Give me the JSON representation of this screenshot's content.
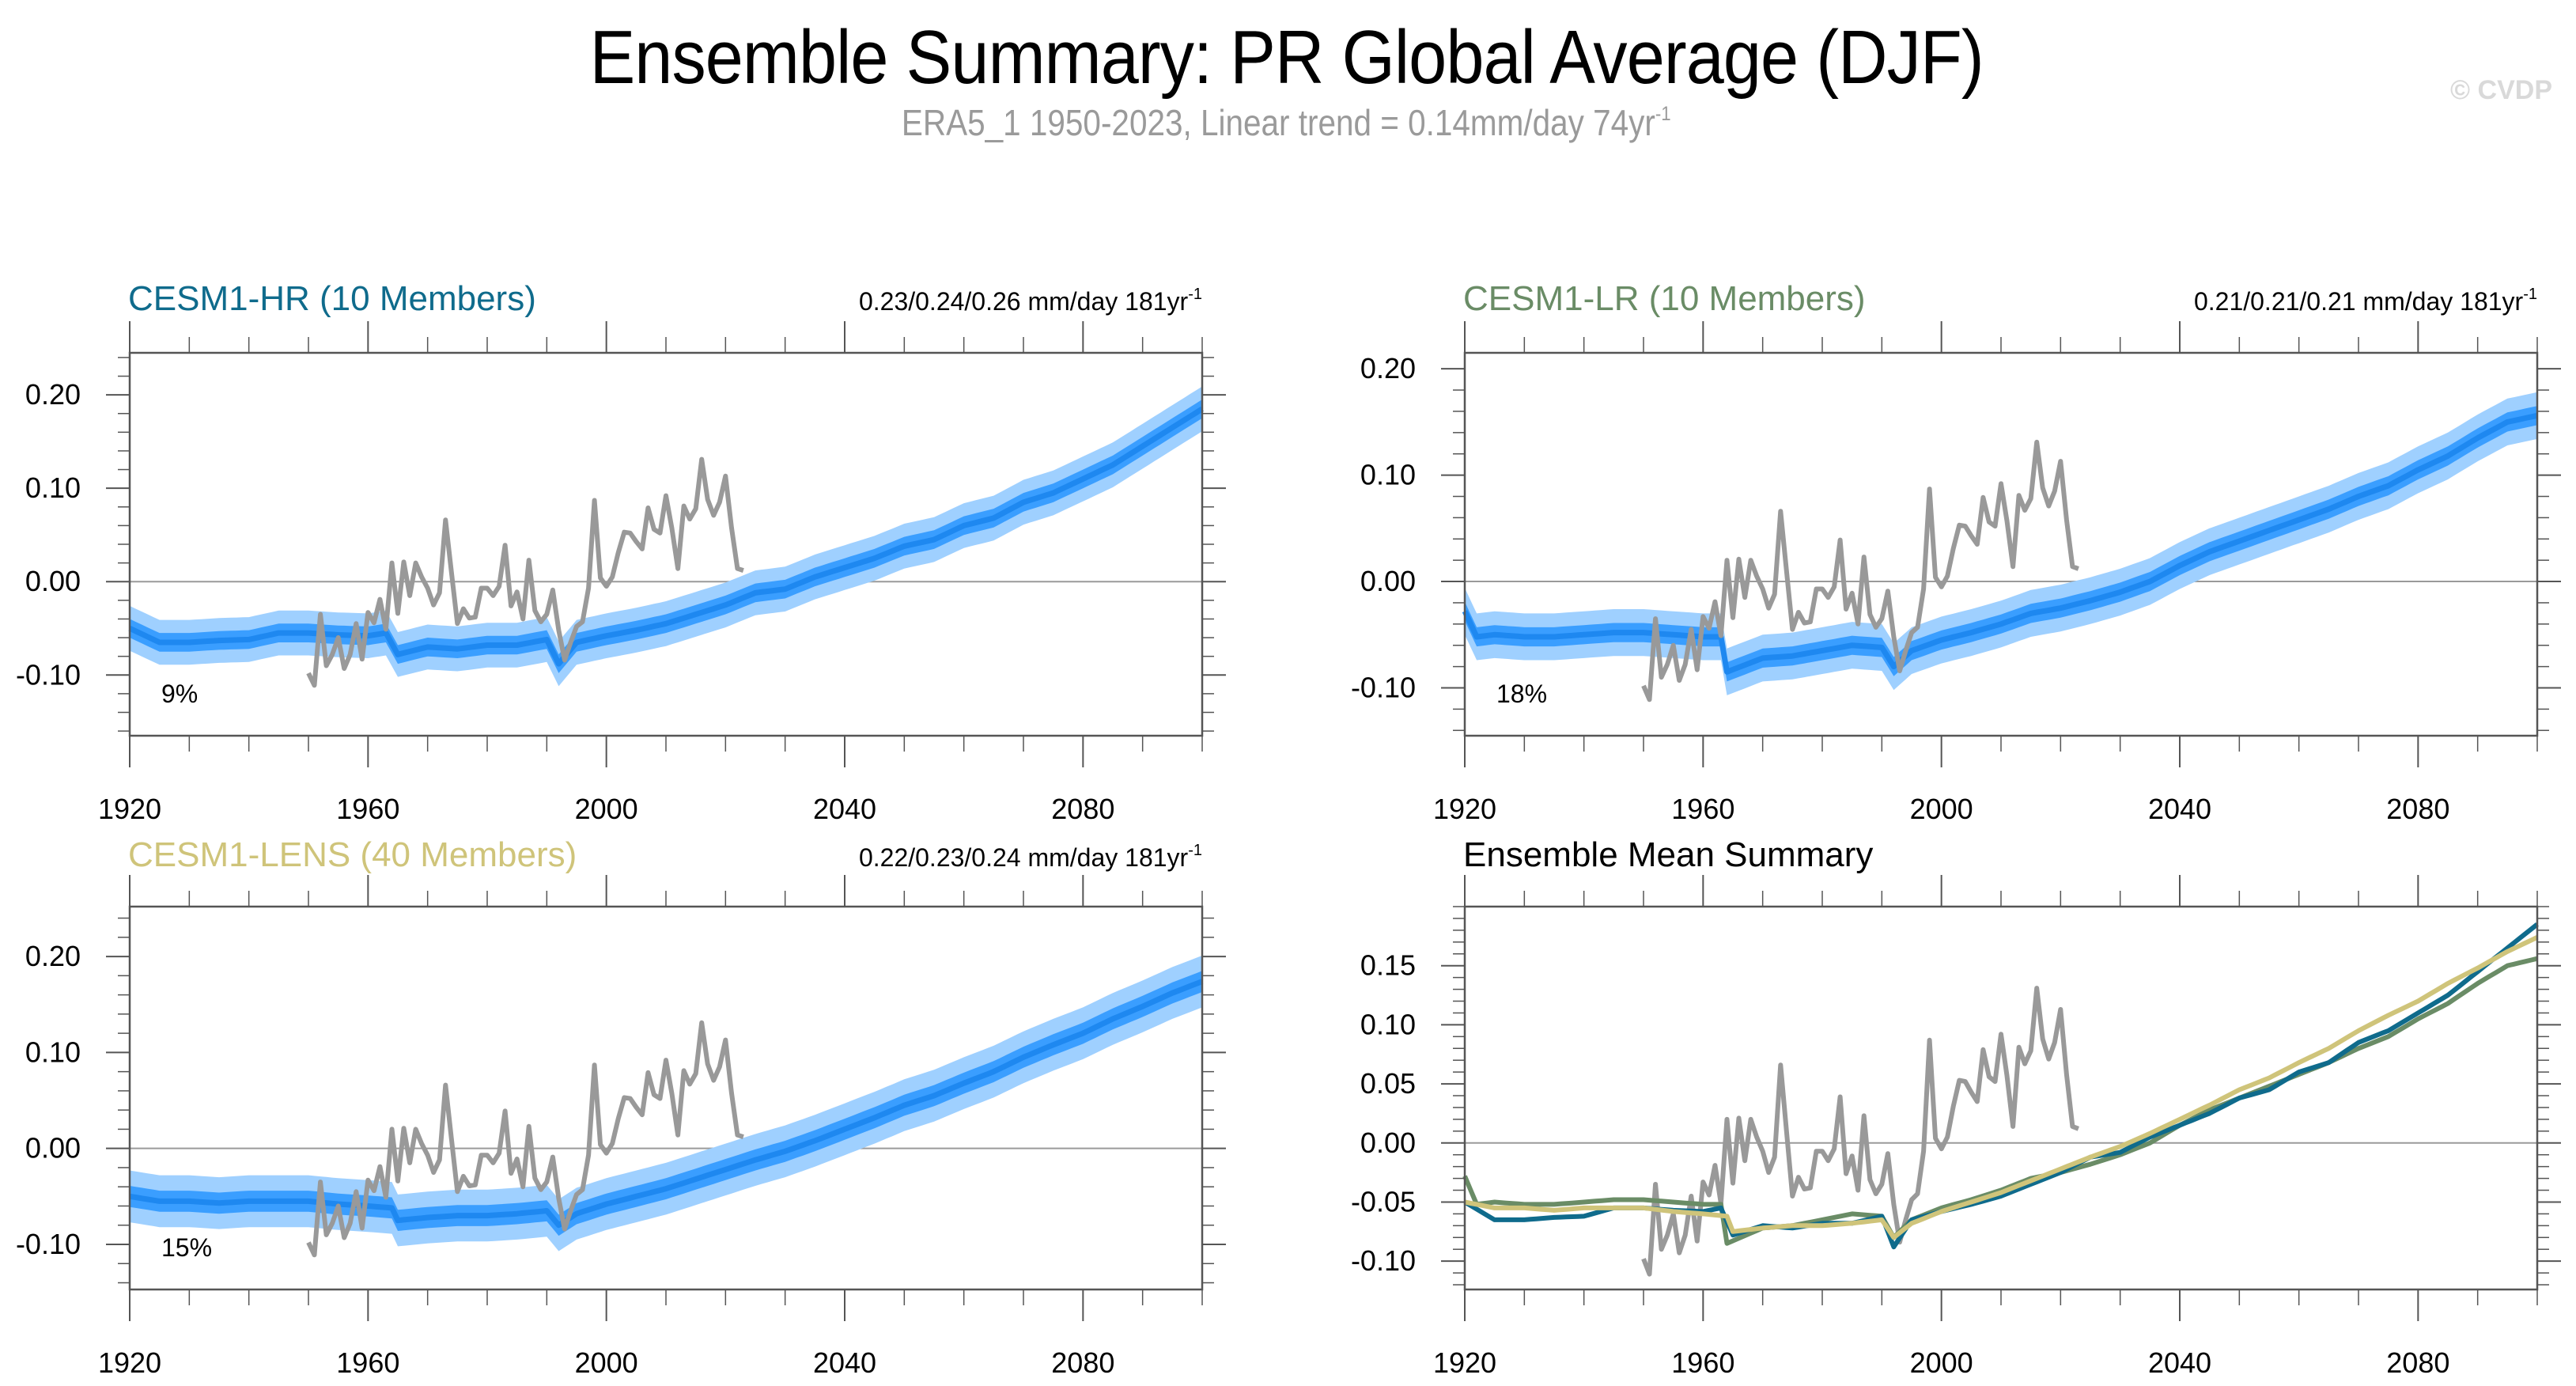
{
  "header": {
    "title": "Ensemble Summary: PR Global Average (DJF)",
    "subtitle_text": "ERA5_1 1950-2023, Linear trend = 0.14mm/day 74yr",
    "subtitle_sup": "-1",
    "watermark": "© CVDP"
  },
  "colors": {
    "hr": "#0F6B8C",
    "lr": "#6A8C66",
    "lens": "#CFC47A",
    "band_outer": "#9FD0FF",
    "band_inner": "#3A9EFF",
    "mean_line": "#1E88F0",
    "obs": "#999999",
    "axis": "#555555",
    "zero_line": "#9a9a9a"
  },
  "chart_data": [
    {
      "type": "area",
      "panel": "top-left",
      "title": "CESM1-HR (10 Members)",
      "title_color_key": "hr",
      "trend_text": "0.23/0.24/0.26 mm/day 181yr",
      "trend_sup": "-1",
      "percent_label": "9%",
      "xlim": [
        1920,
        2100
      ],
      "ylim": [
        -0.165,
        0.245
      ],
      "x_ticks": [
        1920,
        1960,
        2000,
        2040,
        2080
      ],
      "y_ticks": [
        -0.1,
        0.0,
        0.1,
        0.2
      ],
      "y_tick_labels": [
        "-0.10",
        "0.00",
        "0.10",
        "0.20"
      ],
      "y_minor_step": 0.02,
      "series_key": "hr",
      "band_inner_halfwidth": 0.01,
      "band_outer_halfwidth": 0.024
    },
    {
      "type": "area",
      "panel": "top-right",
      "title": "CESM1-LR (10 Members)",
      "title_color_key": "lr",
      "trend_text": "0.21/0.21/0.21 mm/day 181yr",
      "trend_sup": "-1",
      "percent_label": "18%",
      "xlim": [
        1920,
        2100
      ],
      "ylim": [
        -0.145,
        0.215
      ],
      "x_ticks": [
        1920,
        1960,
        2000,
        2040,
        2080
      ],
      "y_ticks": [
        -0.1,
        0.0,
        0.1,
        0.2
      ],
      "y_tick_labels": [
        "-0.10",
        "0.00",
        "0.10",
        "0.20"
      ],
      "y_minor_step": 0.02,
      "series_key": "lr",
      "band_inner_halfwidth": 0.009,
      "band_outer_halfwidth": 0.022
    },
    {
      "type": "area",
      "panel": "bottom-left",
      "title": "CESM1-LENS (40 Members)",
      "title_color_key": "lens",
      "trend_text": "0.22/0.23/0.24 mm/day 181yr",
      "trend_sup": "-1",
      "percent_label": "15%",
      "xlim": [
        1920,
        2100
      ],
      "ylim": [
        -0.147,
        0.252
      ],
      "x_ticks": [
        1920,
        1960,
        2000,
        2040,
        2080
      ],
      "y_ticks": [
        -0.1,
        0.0,
        0.1,
        0.2
      ],
      "y_tick_labels": [
        "-0.10",
        "0.00",
        "0.10",
        "0.20"
      ],
      "y_minor_step": 0.02,
      "series_key": "lens",
      "band_inner_halfwidth": 0.011,
      "band_outer_halfwidth": 0.027
    },
    {
      "type": "line",
      "panel": "bottom-right",
      "title": "Ensemble Mean Summary",
      "title_color_key": "",
      "xlim": [
        1920,
        2100
      ],
      "ylim": [
        -0.124,
        0.2
      ],
      "x_ticks": [
        1920,
        1960,
        2000,
        2040,
        2080
      ],
      "y_ticks": [
        -0.1,
        -0.05,
        0.0,
        0.05,
        0.1,
        0.15
      ],
      "y_tick_labels": [
        "-0.10",
        "-0.05",
        "0.00",
        "0.05",
        "0.10",
        "0.15"
      ],
      "y_minor_step": 0.01,
      "series_keys": [
        "lr",
        "hr",
        "lens"
      ]
    }
  ],
  "series": {
    "hr": {
      "name": "CESM1-HR ensemble mean",
      "x": [
        1920,
        1925,
        1930,
        1935,
        1940,
        1945,
        1950,
        1955,
        1960,
        1963,
        1965,
        1970,
        1975,
        1980,
        1985,
        1990,
        1992,
        1995,
        2000,
        2005,
        2010,
        2015,
        2020,
        2025,
        2030,
        2035,
        2040,
        2045,
        2050,
        2055,
        2060,
        2065,
        2070,
        2075,
        2080,
        2085,
        2090,
        2095,
        2100
      ],
      "y": [
        -0.05,
        -0.065,
        -0.065,
        -0.063,
        -0.062,
        -0.055,
        -0.055,
        -0.057,
        -0.058,
        -0.055,
        -0.078,
        -0.07,
        -0.072,
        -0.068,
        -0.068,
        -0.062,
        -0.088,
        -0.065,
        -0.058,
        -0.052,
        -0.045,
        -0.035,
        -0.025,
        -0.012,
        -0.008,
        0.005,
        0.015,
        0.025,
        0.038,
        0.045,
        0.06,
        0.068,
        0.085,
        0.095,
        0.11,
        0.125,
        0.145,
        0.165,
        0.185
      ]
    },
    "lr": {
      "name": "CESM1-LR ensemble mean",
      "x": [
        1920,
        1922,
        1925,
        1930,
        1935,
        1940,
        1945,
        1950,
        1955,
        1960,
        1963,
        1964,
        1970,
        1975,
        1980,
        1985,
        1990,
        1992,
        1995,
        2000,
        2005,
        2010,
        2015,
        2020,
        2025,
        2030,
        2035,
        2040,
        2045,
        2050,
        2055,
        2060,
        2065,
        2070,
        2075,
        2080,
        2085,
        2090,
        2095,
        2100
      ],
      "y": [
        -0.028,
        -0.052,
        -0.05,
        -0.052,
        -0.052,
        -0.05,
        -0.048,
        -0.048,
        -0.05,
        -0.052,
        -0.052,
        -0.085,
        -0.072,
        -0.07,
        -0.065,
        -0.06,
        -0.062,
        -0.08,
        -0.065,
        -0.055,
        -0.048,
        -0.04,
        -0.03,
        -0.025,
        -0.018,
        -0.01,
        0.0,
        0.015,
        0.028,
        0.038,
        0.048,
        0.058,
        0.068,
        0.08,
        0.09,
        0.105,
        0.118,
        0.135,
        0.15,
        0.156
      ]
    },
    "lens": {
      "name": "CESM1-LENS ensemble mean",
      "x": [
        1920,
        1925,
        1930,
        1935,
        1940,
        1945,
        1950,
        1955,
        1960,
        1964,
        1965,
        1970,
        1975,
        1980,
        1985,
        1990,
        1992,
        1995,
        2000,
        2005,
        2010,
        2015,
        2020,
        2025,
        2030,
        2035,
        2040,
        2045,
        2050,
        2055,
        2060,
        2065,
        2070,
        2075,
        2080,
        2085,
        2090,
        2095,
        2100
      ],
      "y": [
        -0.05,
        -0.055,
        -0.055,
        -0.057,
        -0.055,
        -0.055,
        -0.055,
        -0.058,
        -0.06,
        -0.062,
        -0.075,
        -0.072,
        -0.07,
        -0.07,
        -0.068,
        -0.065,
        -0.08,
        -0.068,
        -0.058,
        -0.05,
        -0.042,
        -0.032,
        -0.022,
        -0.012,
        -0.003,
        0.008,
        0.02,
        0.032,
        0.045,
        0.055,
        0.068,
        0.08,
        0.095,
        0.108,
        0.12,
        0.135,
        0.148,
        0.162,
        0.174
      ]
    },
    "obs": {
      "name": "ERA5_1",
      "x_start": 1950,
      "y": [
        -0.098,
        -0.111,
        -0.035,
        -0.09,
        -0.078,
        -0.06,
        -0.093,
        -0.078,
        -0.045,
        -0.083,
        -0.033,
        -0.044,
        -0.019,
        -0.051,
        0.02,
        -0.034,
        0.021,
        -0.015,
        0.02,
        0.005,
        -0.007,
        -0.025,
        -0.012,
        0.066,
        0.01,
        -0.045,
        -0.029,
        -0.039,
        -0.038,
        -0.007,
        -0.007,
        -0.015,
        -0.005,
        0.039,
        -0.026,
        -0.011,
        -0.04,
        0.023,
        -0.031,
        -0.043,
        -0.035,
        -0.009,
        -0.052,
        -0.084,
        -0.065,
        -0.048,
        -0.043,
        -0.007,
        0.087,
        0.004,
        -0.005,
        0.005,
        0.031,
        0.053,
        0.052,
        0.043,
        0.035,
        0.079,
        0.056,
        0.052,
        0.092,
        0.057,
        0.014,
        0.081,
        0.067,
        0.078,
        0.131,
        0.088,
        0.071,
        0.085,
        0.113,
        0.058,
        0.014,
        0.012
      ]
    }
  }
}
